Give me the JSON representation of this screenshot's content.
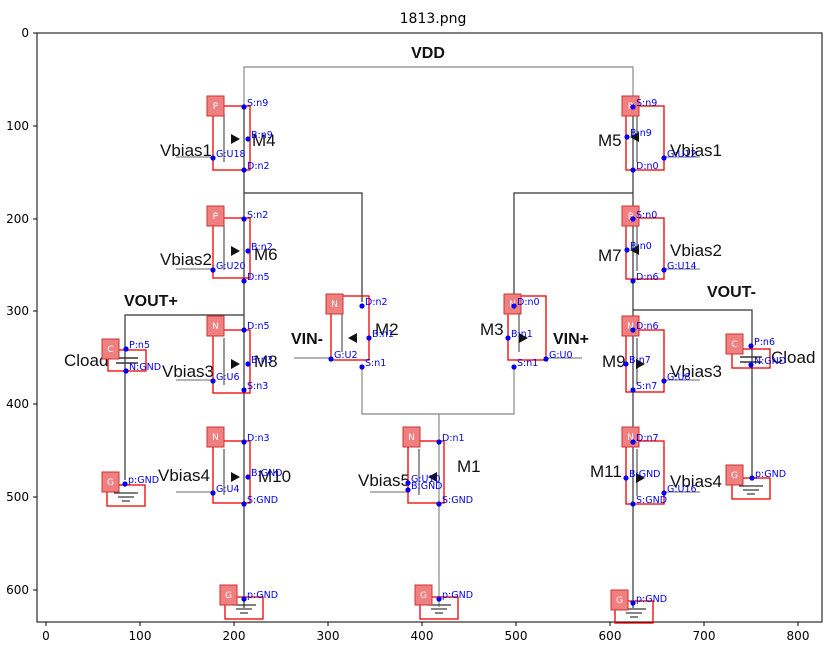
{
  "figure": {
    "title": "1813.png",
    "x_ticks": [
      "0",
      "100",
      "200",
      "300",
      "400",
      "500",
      "600",
      "700",
      "800"
    ],
    "y_ticks": [
      "0",
      "100",
      "200",
      "300",
      "400",
      "500",
      "600"
    ],
    "colors": {
      "box": "#e00000",
      "badge": "#f08080",
      "pin": "#0000ee",
      "wire": "#333333"
    }
  },
  "labels": {
    "vdd": "VDD",
    "vbias1_l": "Vbias1",
    "m4": "M4",
    "vbias1_r": "Vbias1",
    "m5": "M5",
    "vbias2_l": "Vbias2",
    "m6": "M6",
    "vbias2_r": "Vbias2",
    "m7": "M7",
    "voutp": "VOUT+",
    "voutm": "VOUT-",
    "vinm": "VIN-",
    "m2": "M2",
    "vinp": "VIN+",
    "m3": "M3",
    "cload_l": "Cload",
    "cload_r": "Cload",
    "vbias3_l": "Vbias3",
    "m8": "M8",
    "vbias3_r": "Vbias3",
    "m9": "M9",
    "vbias4_l": "Vbias4",
    "m10": "M10",
    "vbias5": "Vbias5",
    "m1": "M1",
    "m11": "M11",
    "vbias4_r": "Vbias4"
  },
  "components": [
    {
      "id": "M4",
      "type": "P",
      "pins": [
        "S:n9",
        "B:n9",
        "G:U18",
        "D:n2"
      ]
    },
    {
      "id": "M5",
      "type": "P",
      "pins": [
        "S:n9",
        "B:n9",
        "G:U12",
        "D:n0"
      ]
    },
    {
      "id": "M6",
      "type": "P",
      "pins": [
        "S:n2",
        "B:n2",
        "G:U20",
        "D:n5"
      ]
    },
    {
      "id": "M7",
      "type": "P",
      "pins": [
        "S:n0",
        "B:n0",
        "G:U14",
        "D:n6"
      ]
    },
    {
      "id": "M2",
      "type": "N",
      "pins": [
        "D:n2",
        "B:n1",
        "G:U2",
        "S:n1"
      ]
    },
    {
      "id": "M3",
      "type": "N",
      "pins": [
        "D:n0",
        "B:n1",
        "G:U0",
        "S:n1"
      ]
    },
    {
      "id": "M8",
      "type": "N",
      "pins": [
        "D:n5",
        "B:n3",
        "G:U6",
        "S:n3"
      ]
    },
    {
      "id": "M9",
      "type": "N",
      "pins": [
        "D:n6",
        "B:n7",
        "G:U8",
        "S:n7"
      ]
    },
    {
      "id": "M10",
      "type": "N",
      "pins": [
        "D:n3",
        "B:GND",
        "G:U4",
        "S:GND"
      ]
    },
    {
      "id": "M1",
      "type": "N",
      "pins": [
        "D:n1",
        "G:U10",
        "B:GND",
        "S:GND"
      ]
    },
    {
      "id": "M11",
      "type": "N",
      "pins": [
        "D:n7",
        "B:GND",
        "G:U16",
        "S:GND"
      ]
    },
    {
      "id": "CL",
      "type": "C",
      "pins": [
        "P:n5",
        "N:GND"
      ]
    },
    {
      "id": "CR",
      "type": "C",
      "pins": [
        "P:n6",
        "N:GND"
      ]
    },
    {
      "id": "G1",
      "type": "G",
      "pins": [
        "p:GND"
      ]
    },
    {
      "id": "G2",
      "type": "G",
      "pins": [
        "p:GND"
      ]
    },
    {
      "id": "G3",
      "type": "G",
      "pins": [
        "p:GND"
      ]
    },
    {
      "id": "G4",
      "type": "G",
      "pins": [
        "p:GND"
      ]
    },
    {
      "id": "G5",
      "type": "G",
      "pins": [
        "p:GND"
      ]
    }
  ]
}
